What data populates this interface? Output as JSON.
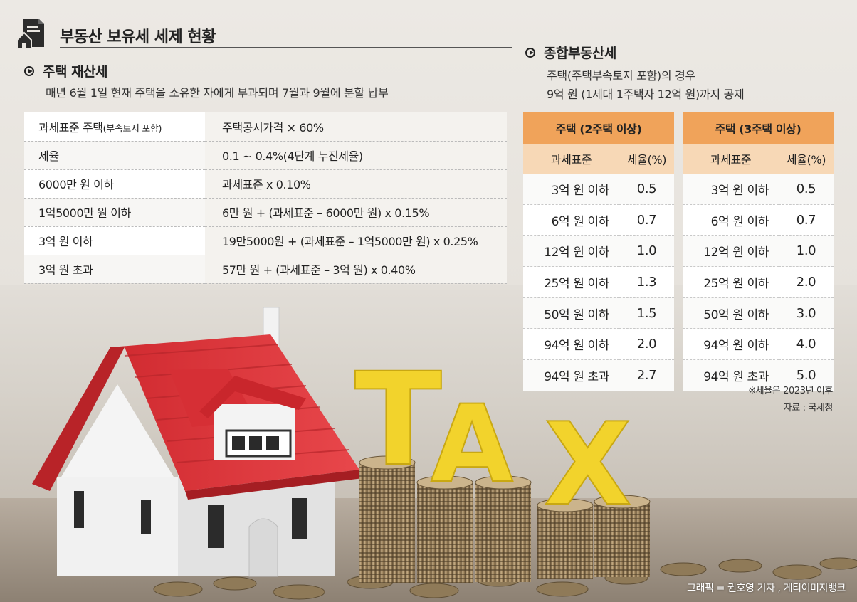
{
  "title": "부동산 보유세 세제 현황",
  "property_tax": {
    "heading": "주택 재산세",
    "description": "매년 6월 1일 현재 주택을 소유한 자에게 부과되며 7월과 9월에 분할 납부",
    "rows": [
      {
        "label": "과세표준 주택",
        "label_small": "(부속토지 포함)",
        "value": "주택공시가격 × 60%"
      },
      {
        "label": "세율",
        "label_small": "",
        "value": "0.1 ~ 0.4%(4단계 누진세율)"
      },
      {
        "label": "6000만 원 이하",
        "label_small": "",
        "value": "과세표준 x 0.10%"
      },
      {
        "label": "1억5000만 원 이하",
        "label_small": "",
        "value": "6만 원 + (과세표준 – 6000만 원) x 0.15%"
      },
      {
        "label": "3억 원 이하",
        "label_small": "",
        "value": "19만5000원 + (과세표준 – 1억5000만 원) x 0.25%"
      },
      {
        "label": "3억 원 초과",
        "label_small": "",
        "value": "57만 원 + (과세표준 – 3억 원) x 0.40%"
      }
    ]
  },
  "comprehensive_tax": {
    "heading": "종합부동산세",
    "description_line1": "주택(주택부속토지 포함)의 경우",
    "description_line2": "9억 원 (1세대 1주택자 12억 원)까지 공제",
    "tables": [
      {
        "title": "주택 (2주택 이상)",
        "col_base": "과세표준",
        "col_rate": "세율(%)",
        "rows": [
          {
            "base": "3억 원 이하",
            "rate": "0.5"
          },
          {
            "base": "6억 원 이하",
            "rate": "0.7"
          },
          {
            "base": "12억 원 이하",
            "rate": "1.0"
          },
          {
            "base": "25억 원 이하",
            "rate": "1.3"
          },
          {
            "base": "50억 원 이하",
            "rate": "1.5"
          },
          {
            "base": "94억 원 이하",
            "rate": "2.0"
          },
          {
            "base": "94억 원 초과",
            "rate": "2.7"
          }
        ]
      },
      {
        "title": "주택 (3주택 이상)",
        "col_base": "과세표준",
        "col_rate": "세율(%)",
        "rows": [
          {
            "base": "3억 원 이하",
            "rate": "0.5"
          },
          {
            "base": "6억 원 이하",
            "rate": "0.7"
          },
          {
            "base": "12억 원 이하",
            "rate": "1.0"
          },
          {
            "base": "25억 원 이하",
            "rate": "2.0"
          },
          {
            "base": "50억 원 이하",
            "rate": "3.0"
          },
          {
            "base": "94억 원 이하",
            "rate": "4.0"
          },
          {
            "base": "94억 원 초과",
            "rate": "5.0"
          }
        ]
      }
    ]
  },
  "notes": {
    "rate_note": "※세율은 2023년 이후",
    "source": "자료 : 국세청"
  },
  "illustration": {
    "tax_letters": [
      "T",
      "A",
      "X"
    ]
  },
  "credit": "그래픽 = 권호영 기자 , 게티이미지뱅크",
  "colors": {
    "header_orange": "#f0a35a",
    "subheader_peach": "#f7d8b6",
    "roof_red": "#e0343a",
    "letter_yellow": "#f2d32c"
  }
}
